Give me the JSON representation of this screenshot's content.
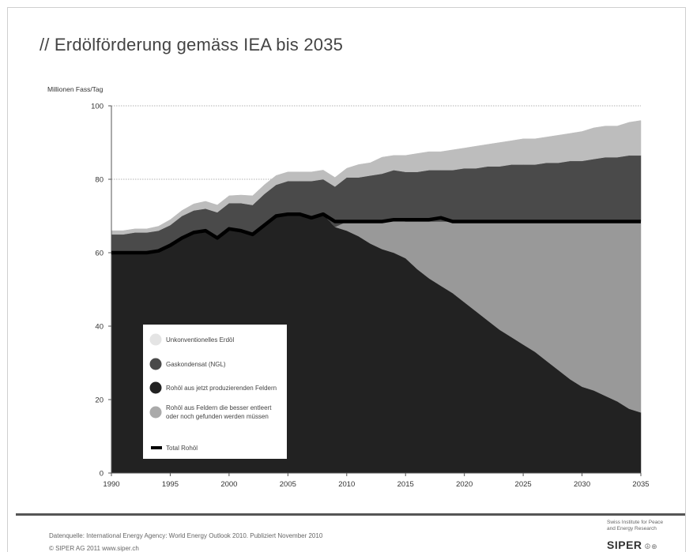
{
  "chart_data": {
    "type": "area",
    "title": "// Erdölförderung gemäss IEA bis 2035",
    "ylabel": "Millionen Fass/Tag",
    "xlabel": "",
    "xlim": [
      1990,
      2035
    ],
    "ylim": [
      0,
      100
    ],
    "x_ticks": [
      "1990",
      "1995",
      "2000",
      "2005",
      "2010",
      "2015",
      "2020",
      "2025",
      "2030",
      "2035"
    ],
    "y_ticks": [
      "0",
      "20",
      "40",
      "60",
      "80",
      "100"
    ],
    "grid": "dotted horizontal",
    "legend": "inside, lower-left",
    "x": [
      1990,
      1991,
      1992,
      1993,
      1994,
      1995,
      1996,
      1997,
      1998,
      1999,
      2000,
      2001,
      2002,
      2003,
      2004,
      2005,
      2006,
      2007,
      2008,
      2009,
      2010,
      2011,
      2012,
      2013,
      2014,
      2015,
      2016,
      2017,
      2018,
      2019,
      2020,
      2021,
      2022,
      2023,
      2024,
      2025,
      2026,
      2027,
      2028,
      2029,
      2030,
      2031,
      2032,
      2033,
      2034,
      2035
    ],
    "series": [
      {
        "name": "Rohöl aus jetzt produzierenden Feldern",
        "color": "#222222",
        "values": [
          60,
          60,
          60,
          60,
          60.5,
          62,
          64,
          65.5,
          66,
          64,
          66.5,
          66,
          65,
          67.5,
          70,
          70.5,
          70.5,
          69.5,
          70.5,
          67,
          66,
          64.5,
          62.5,
          61,
          60,
          58.5,
          55.5,
          53,
          51,
          49,
          46.5,
          44,
          41.5,
          39,
          37,
          35,
          33,
          30.5,
          28,
          25.5,
          23.5,
          22.5,
          21,
          19.5,
          17.5,
          16.5
        ]
      },
      {
        "name": "Rohöl aus Feldern die besser entleert oder noch gefunden werden müssen",
        "color": "#999999",
        "values": [
          0,
          0,
          0,
          0,
          0,
          0,
          0,
          0,
          0,
          0,
          0,
          0,
          0,
          0,
          0,
          0,
          0,
          0,
          0,
          0,
          2.5,
          4,
          6,
          7.5,
          9,
          10,
          13,
          15.5,
          17.5,
          19.5,
          22,
          24.5,
          27,
          29.5,
          31.5,
          33.5,
          35.5,
          38,
          40.5,
          43,
          45,
          46,
          47.5,
          49,
          51,
          52
        ]
      },
      {
        "name": "Gaskondensat (NGL)",
        "color": "#4a4a4a",
        "values": [
          5,
          5,
          5.5,
          5.5,
          5.5,
          5.5,
          6,
          6,
          6,
          7,
          7,
          7.5,
          8,
          8.5,
          8.5,
          9,
          9,
          10,
          9.5,
          11,
          12,
          12,
          12.5,
          13,
          13.5,
          13.5,
          13.5,
          14,
          14,
          14,
          14.5,
          14.5,
          15,
          15,
          15.5,
          15.5,
          15.5,
          16,
          16,
          16.5,
          16.5,
          17,
          17.5,
          17.5,
          18,
          18
        ]
      },
      {
        "name": "Unkonventionelles Erdöl",
        "color": "#bdbdbd",
        "values": [
          1,
          1,
          1,
          1,
          1.2,
          1.5,
          1.5,
          1.8,
          2,
          2,
          2,
          2.2,
          2.5,
          2.5,
          2.5,
          2.5,
          2.5,
          2.5,
          2.5,
          2.5,
          2.5,
          3.5,
          3.5,
          4.5,
          4,
          4.5,
          5,
          5,
          5,
          5.5,
          5.5,
          6,
          6,
          6.5,
          6.5,
          7,
          7,
          7,
          7.5,
          7.5,
          8,
          8.5,
          8.5,
          8.5,
          9,
          9.5
        ]
      },
      {
        "name": "Total Rohöl",
        "type": "line",
        "color": "#000000",
        "values": [
          60,
          60,
          60,
          60,
          60.5,
          62,
          64,
          65.5,
          66,
          64,
          66.5,
          66,
          65,
          67.5,
          70,
          70.5,
          70.5,
          69.5,
          70.5,
          68.5,
          68.5,
          68.5,
          68.5,
          68.5,
          69,
          69,
          69,
          69,
          69.5,
          68.5,
          68.5,
          68.5,
          68.5,
          68.5,
          68.5,
          68.5,
          68.5,
          68.5,
          68.5,
          68.5,
          68.5,
          68.5,
          68.5,
          68.5,
          68.5,
          68.5
        ]
      }
    ],
    "legend_entries": [
      {
        "label": "Unkonventionelles Erdöl",
        "color": "#e4e4e4",
        "shape": "circle"
      },
      {
        "label": "Gaskondensat (NGL)",
        "color": "#4a4a4a",
        "shape": "circle"
      },
      {
        "label": "Rohöl aus jetzt produzierenden Feldern",
        "color": "#222222",
        "shape": "circle"
      },
      {
        "label": "Rohöl aus Feldern die besser entleert",
        "label2": "oder noch gefunden werden müssen",
        "color": "#aaaaaa",
        "shape": "circle"
      },
      {
        "label": "Total Rohöl",
        "color": "#000000",
        "shape": "line"
      }
    ]
  },
  "footer": {
    "source": "Datenquelle: International Energy Agency: World Energy Outlook 2010. Publiziert November 2010",
    "copyright": "© SIPER AG 2011  www.siper.ch",
    "org_line1": "Swiss Institute for Peace",
    "org_line2": "and Energy Research",
    "org_logo": "SIPER",
    "org_logo_marks": "☮⊕"
  }
}
